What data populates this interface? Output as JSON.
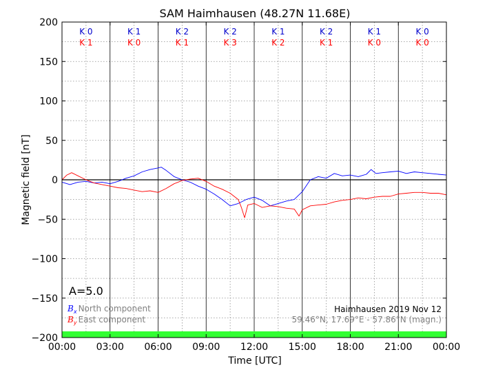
{
  "chart_data": {
    "type": "line",
    "title": "SAM Haimhausen (48.27N 11.68E)",
    "xlabel": "Time [UTC]",
    "ylabel": "Magnetic field [nT]",
    "xlim": [
      0,
      24
    ],
    "ylim": [
      -200,
      200
    ],
    "grid": true,
    "x_tick_labels": [
      "00:00",
      "03:00",
      "06:00",
      "09:00",
      "12:00",
      "15:00",
      "18:00",
      "21:00",
      "00:00"
    ],
    "y_ticks": [
      200,
      150,
      100,
      50,
      0,
      -50,
      -100,
      -150,
      -200
    ],
    "y_tick_labels": [
      "200",
      "150",
      "100",
      "50",
      "0",
      "−50",
      "−100",
      "−150",
      "−200"
    ],
    "series": [
      {
        "name": "North component",
        "symbol": "B",
        "subscript": "x",
        "color": "#0000ff",
        "points": [
          [
            0,
            -3
          ],
          [
            0.5,
            -6
          ],
          [
            1,
            -3
          ],
          [
            1.5,
            -2
          ],
          [
            2,
            -4
          ],
          [
            2.5,
            -3
          ],
          [
            3,
            -5
          ],
          [
            3.5,
            -2
          ],
          [
            4,
            2
          ],
          [
            4.5,
            5
          ],
          [
            5,
            10
          ],
          [
            5.5,
            13
          ],
          [
            6,
            15
          ],
          [
            6.2,
            16
          ],
          [
            6.5,
            12
          ],
          [
            7,
            4
          ],
          [
            7.5,
            0
          ],
          [
            8,
            -3
          ],
          [
            8.5,
            -8
          ],
          [
            9,
            -12
          ],
          [
            9.5,
            -18
          ],
          [
            10,
            -25
          ],
          [
            10.5,
            -33
          ],
          [
            11,
            -30
          ],
          [
            11.5,
            -25
          ],
          [
            12,
            -22
          ],
          [
            12.5,
            -26
          ],
          [
            13,
            -33
          ],
          [
            13.5,
            -30
          ],
          [
            14,
            -27
          ],
          [
            14.5,
            -25
          ],
          [
            15,
            -15
          ],
          [
            15.5,
            0
          ],
          [
            16,
            4
          ],
          [
            16.5,
            2
          ],
          [
            17,
            8
          ],
          [
            17.5,
            5
          ],
          [
            18,
            6
          ],
          [
            18.5,
            4
          ],
          [
            19,
            7
          ],
          [
            19.3,
            13
          ],
          [
            19.6,
            8
          ],
          [
            20,
            9
          ],
          [
            20.5,
            10
          ],
          [
            21,
            11
          ],
          [
            21.5,
            8
          ],
          [
            22,
            10
          ],
          [
            22.5,
            9
          ],
          [
            23,
            8
          ],
          [
            23.5,
            7
          ],
          [
            24,
            6
          ]
        ]
      },
      {
        "name": "East component",
        "symbol": "B",
        "subscript": "y",
        "color": "#ff0000",
        "points": [
          [
            0,
            0
          ],
          [
            0.3,
            6
          ],
          [
            0.6,
            9
          ],
          [
            1,
            5
          ],
          [
            1.5,
            0
          ],
          [
            2,
            -4
          ],
          [
            2.5,
            -6
          ],
          [
            3,
            -8
          ],
          [
            3.5,
            -10
          ],
          [
            4,
            -11
          ],
          [
            4.5,
            -13
          ],
          [
            5,
            -15
          ],
          [
            5.5,
            -14
          ],
          [
            6,
            -16
          ],
          [
            6.5,
            -11
          ],
          [
            7,
            -5
          ],
          [
            7.5,
            -1
          ],
          [
            8,
            1
          ],
          [
            8.5,
            2
          ],
          [
            9,
            -2
          ],
          [
            9.5,
            -8
          ],
          [
            10,
            -12
          ],
          [
            10.5,
            -17
          ],
          [
            11,
            -25
          ],
          [
            11.2,
            -35
          ],
          [
            11.4,
            -48
          ],
          [
            11.6,
            -32
          ],
          [
            12,
            -30
          ],
          [
            12.5,
            -35
          ],
          [
            13,
            -33
          ],
          [
            13.5,
            -34
          ],
          [
            14,
            -36
          ],
          [
            14.5,
            -37
          ],
          [
            14.8,
            -46
          ],
          [
            15,
            -38
          ],
          [
            15.5,
            -33
          ],
          [
            16,
            -32
          ],
          [
            16.5,
            -31
          ],
          [
            17,
            -28
          ],
          [
            17.5,
            -26
          ],
          [
            18,
            -25
          ],
          [
            18.5,
            -23
          ],
          [
            19,
            -24
          ],
          [
            19.5,
            -22
          ],
          [
            20,
            -21
          ],
          [
            20.5,
            -21
          ],
          [
            21,
            -18
          ],
          [
            21.5,
            -17
          ],
          [
            22,
            -16
          ],
          [
            22.5,
            -16
          ],
          [
            23,
            -17
          ],
          [
            23.5,
            -17
          ],
          [
            24,
            -19
          ]
        ]
      }
    ],
    "k_index": {
      "x_label": "K",
      "y_label": "K",
      "x_color": "#0000cc",
      "y_color": "#ff0000",
      "x": [
        0,
        1,
        2,
        2,
        1,
        2,
        1,
        0
      ],
      "y": [
        1,
        0,
        1,
        3,
        2,
        1,
        0,
        0
      ]
    },
    "a_index": "A=5.0",
    "station_note": "Haimhausen 2019 Nov 12",
    "coords_note": "59.46°N, 17.69°E - 57.86°N (magn.)",
    "status_bar_color": "#33ff33"
  }
}
